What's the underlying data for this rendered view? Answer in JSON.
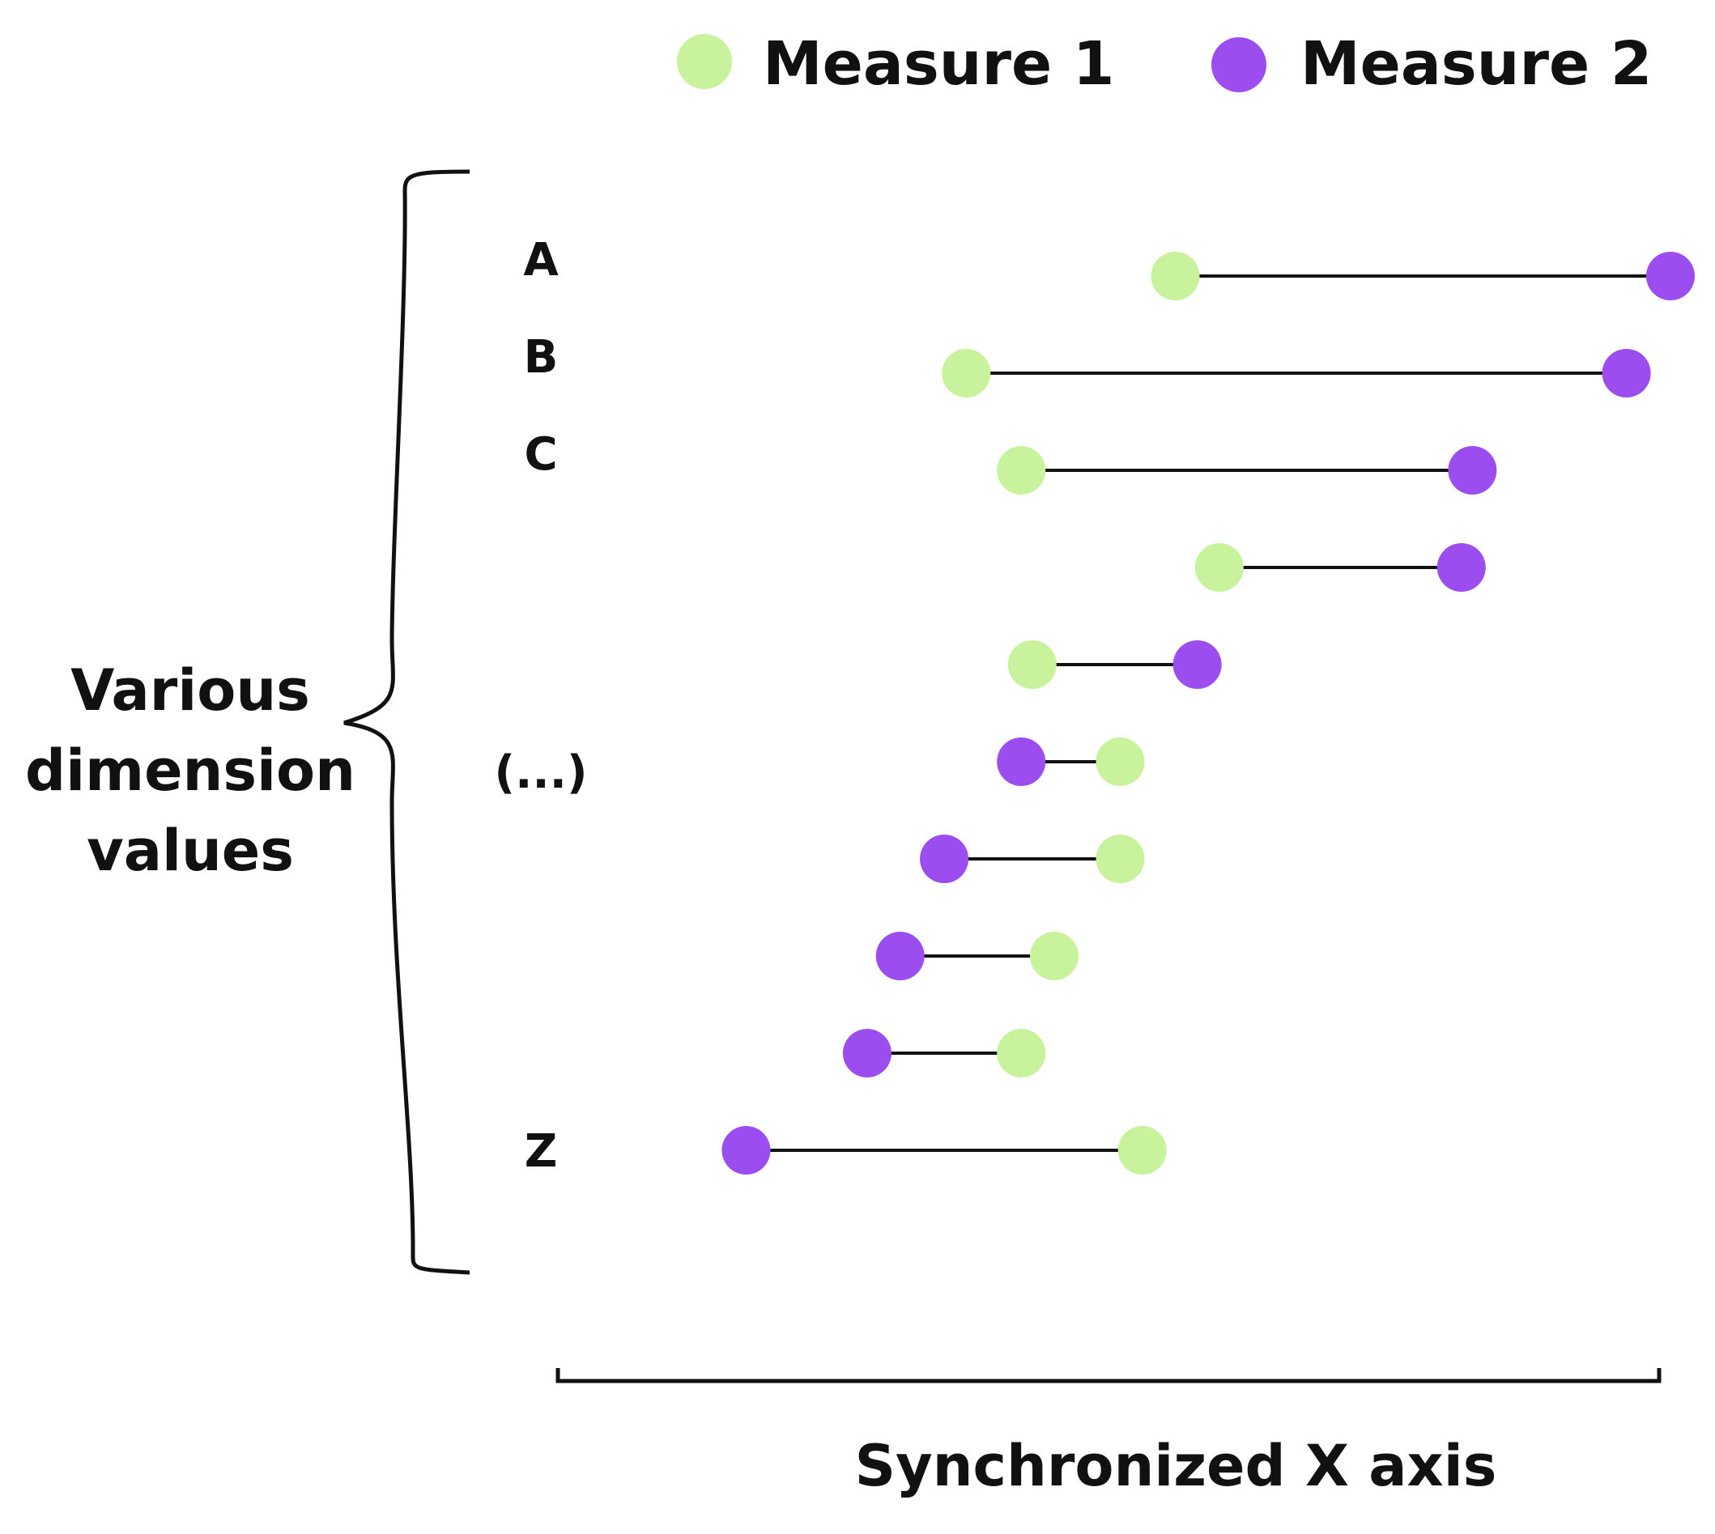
{
  "chart_data": {
    "type": "dumbbell",
    "legend": {
      "placement": "top-right",
      "items": [
        {
          "name": "Measure 1",
          "color": "#c8f29b"
        },
        {
          "name": "Measure 2",
          "color": "#9b4df0"
        }
      ]
    },
    "categories": [
      "A",
      "B",
      "C",
      "",
      "",
      "(...)",
      "",
      "",
      "",
      "Z"
    ],
    "series": [
      {
        "name": "Measure 1",
        "color": "#c8f29b",
        "values": [
          55,
          36,
          41,
          59,
          42,
          50,
          50,
          44,
          41,
          52
        ]
      },
      {
        "name": "Measure 2",
        "color": "#9b4df0",
        "values": [
          100,
          96,
          82,
          81,
          57,
          41,
          34,
          30,
          27,
          16
        ]
      }
    ],
    "xlim": [
      0,
      100
    ],
    "connector_color": "#111111",
    "side_label": [
      "Various",
      "dimension",
      "values"
    ],
    "xlabel": "Synchronized X axis",
    "grid": false
  }
}
